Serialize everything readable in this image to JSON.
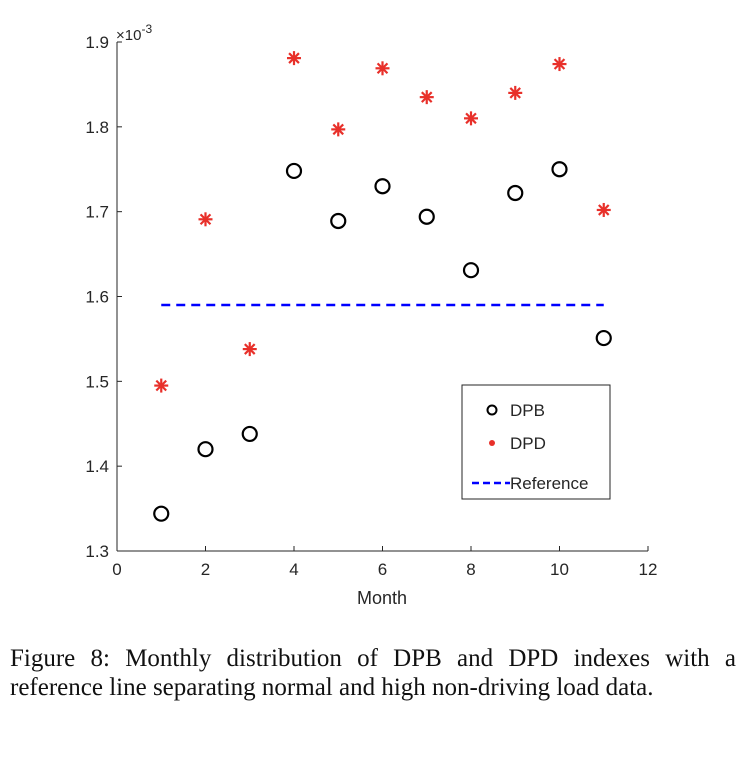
{
  "chart_data": {
    "type": "scatter",
    "xlabel": "Month",
    "ylabel": "",
    "xlim": [
      0,
      12
    ],
    "ylim": [
      1.3,
      1.9
    ],
    "y_multiplier_label": "×10",
    "y_multiplier_exponent": "-3",
    "xticks": [
      "0",
      "2",
      "4",
      "6",
      "8",
      "10",
      "12"
    ],
    "yticks": [
      "1.3",
      "1.4",
      "1.5",
      "1.6",
      "1.7",
      "1.8",
      "1.9"
    ],
    "grid": false,
    "legend_position": "bottom-right",
    "series": [
      {
        "name": "DPB",
        "marker": "circle",
        "color": "#000000",
        "x": [
          1,
          2,
          3,
          4,
          5,
          6,
          7,
          8,
          9,
          10,
          11
        ],
        "y": [
          1.344,
          1.42,
          1.438,
          1.748,
          1.689,
          1.73,
          1.694,
          1.631,
          1.722,
          1.75,
          1.551
        ]
      },
      {
        "name": "DPD",
        "marker": "asterisk",
        "color": "#e8302a",
        "x": [
          1,
          2,
          3,
          4,
          5,
          6,
          7,
          8,
          9,
          10,
          11
        ],
        "y": [
          1.495,
          1.691,
          1.538,
          1.881,
          1.797,
          1.869,
          1.835,
          1.81,
          1.84,
          1.874,
          1.702
        ]
      },
      {
        "name": "Reference",
        "marker": "dashed-line",
        "color": "#0000ff",
        "x": [
          1,
          11
        ],
        "y": [
          1.59,
          1.59
        ]
      }
    ]
  },
  "caption": "Figure 8: Monthly distribution of DPB and DPD indexes with a reference line separating normal and high non-driving load data."
}
